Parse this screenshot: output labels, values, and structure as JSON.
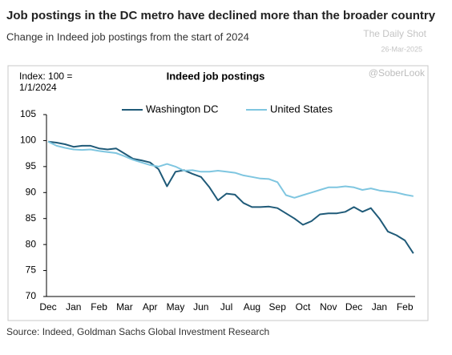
{
  "chart_data": {
    "type": "line",
    "title": "Job postings in the DC metro have declined more than the broader country",
    "subtitle": "Change in Indeed job postings from the start of 2024",
    "chart_title": "Indeed job postings",
    "annotations": [
      "Index:  100 =",
      "1/1/2024"
    ],
    "watermarks": [
      "The Daily Shot",
      "26-Mar-2025",
      "@SoberLook"
    ],
    "source": "Source: Indeed, Goldman Sachs Global Investment Research",
    "categories": [
      "Dec",
      null,
      null,
      "Jan",
      null,
      null,
      "Feb",
      null,
      null,
      "Mar",
      null,
      null,
      "Apr",
      null,
      null,
      "May",
      null,
      null,
      "Jun",
      null,
      null,
      "Jul",
      null,
      null,
      "Aug",
      null,
      null,
      "Sep",
      null,
      null,
      "Oct",
      null,
      null,
      "Nov",
      null,
      null,
      "Dec",
      null,
      null,
      "Jan",
      null,
      null,
      "Feb",
      null
    ],
    "series": [
      {
        "name": "Washington DC",
        "color": "#1f5a78",
        "values": [
          99.8,
          99.6,
          99.3,
          98.8,
          99.0,
          99.0,
          98.5,
          98.3,
          98.5,
          97.5,
          96.5,
          96.2,
          95.8,
          94.5,
          91.2,
          94.0,
          94.3,
          93.6,
          93.0,
          91.0,
          88.5,
          89.8,
          89.6,
          88.0,
          87.2,
          87.2,
          87.3,
          87.0,
          86.0,
          85.0,
          83.8,
          84.5,
          85.8,
          86.0,
          86.0,
          86.3,
          87.2,
          86.3,
          87.0,
          85.0,
          82.5,
          81.8,
          80.8,
          78.3
        ]
      },
      {
        "name": "United States",
        "color": "#7fc6e0",
        "values": [
          99.8,
          99.0,
          98.6,
          98.3,
          98.2,
          98.3,
          98.0,
          97.8,
          97.6,
          97.0,
          96.3,
          95.8,
          95.3,
          95.0,
          95.5,
          95.0,
          94.2,
          94.3,
          94.0,
          94.0,
          94.2,
          94.0,
          93.8,
          93.3,
          93.0,
          92.7,
          92.6,
          92.0,
          89.5,
          89.0,
          89.5,
          90.0,
          90.5,
          91.0,
          91.0,
          91.2,
          91.0,
          90.5,
          90.8,
          90.4,
          90.2,
          90.0,
          89.6,
          89.3
        ]
      }
    ],
    "ylim": [
      70,
      105
    ],
    "yticks": [
      70,
      75,
      80,
      85,
      90,
      95,
      100,
      105
    ]
  }
}
